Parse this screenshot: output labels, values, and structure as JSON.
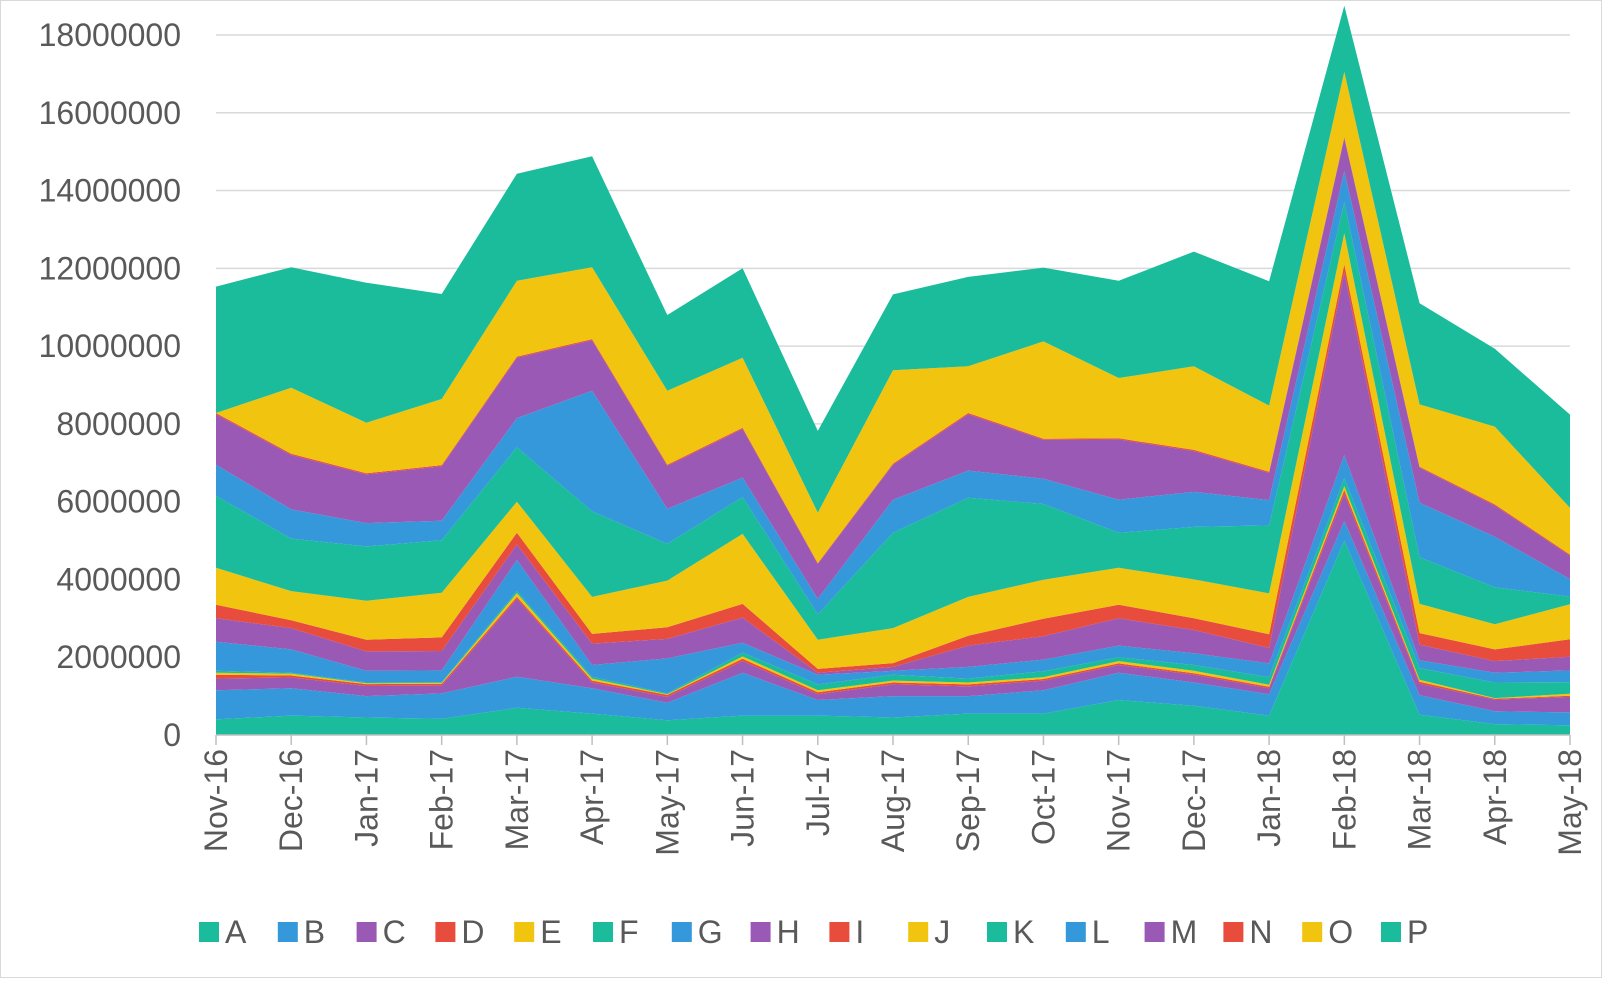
{
  "chart_data": {
    "type": "area",
    "stacked": true,
    "title": "",
    "xlabel": "",
    "ylabel": "",
    "ylim": [
      0,
      18000000
    ],
    "yticks": [
      0,
      2000000,
      4000000,
      6000000,
      8000000,
      10000000,
      12000000,
      14000000,
      16000000,
      18000000
    ],
    "ytick_labels": [
      "0",
      "2000000",
      "4000000",
      "6000000",
      "8000000",
      "10000000",
      "12000000",
      "14000000",
      "16000000",
      "18000000"
    ],
    "grid": "horizontal",
    "legend_position": "bottom",
    "categories": [
      "Nov-16",
      "Dec-16",
      "Jan-17",
      "Feb-17",
      "Mar-17",
      "Apr-17",
      "May-17",
      "Jun-17",
      "Jul-17",
      "Aug-17",
      "Sep-17",
      "Oct-17",
      "Nov-17",
      "Dec-17",
      "Jan-18",
      "Feb-18",
      "Mar-18",
      "Apr-18",
      "May-18"
    ],
    "series": [
      {
        "name": "A",
        "color": "#1abc9c",
        "values": [
          400000,
          500000,
          450000,
          420000,
          700000,
          550000,
          380000,
          500000,
          500000,
          450000,
          550000,
          550000,
          900000,
          750000,
          500000,
          5000000,
          520000,
          280000,
          250000
        ]
      },
      {
        "name": "B",
        "color": "#3498db",
        "values": [
          750000,
          700000,
          550000,
          650000,
          800000,
          650000,
          450000,
          1100000,
          400000,
          550000,
          450000,
          600000,
          700000,
          600000,
          550000,
          500000,
          500000,
          330000,
          330000
        ]
      },
      {
        "name": "C",
        "color": "#9b59b6",
        "values": [
          300000,
          280000,
          260000,
          200000,
          2000000,
          150000,
          150000,
          300000,
          150000,
          300000,
          250000,
          250000,
          200000,
          200000,
          150000,
          700000,
          300000,
          300000,
          400000
        ]
      },
      {
        "name": "D",
        "color": "#e74c3c",
        "values": [
          100000,
          50000,
          50000,
          50000,
          50000,
          50000,
          50000,
          60000,
          50000,
          50000,
          50000,
          40000,
          40000,
          40000,
          40000,
          100000,
          50000,
          20000,
          30000
        ]
      },
      {
        "name": "E",
        "color": "#f1c40f",
        "values": [
          50000,
          50000,
          20000,
          20000,
          100000,
          50000,
          20000,
          60000,
          50000,
          50000,
          50000,
          50000,
          60000,
          60000,
          50000,
          100000,
          50000,
          20000,
          50000
        ]
      },
      {
        "name": "F",
        "color": "#1abc9c",
        "values": [
          50000,
          20000,
          20000,
          20000,
          50000,
          50000,
          20000,
          100000,
          150000,
          150000,
          100000,
          150000,
          100000,
          150000,
          200000,
          200000,
          300000,
          400000,
          300000
        ]
      },
      {
        "name": "G",
        "color": "#3498db",
        "values": [
          750000,
          600000,
          300000,
          300000,
          800000,
          300000,
          900000,
          250000,
          250000,
          100000,
          300000,
          300000,
          300000,
          300000,
          350000,
          600000,
          200000,
          250000,
          300000
        ]
      },
      {
        "name": "H",
        "color": "#9b59b6",
        "values": [
          600000,
          550000,
          500000,
          500000,
          400000,
          550000,
          500000,
          650000,
          50000,
          100000,
          550000,
          600000,
          700000,
          600000,
          400000,
          4700000,
          400000,
          300000,
          350000
        ]
      },
      {
        "name": "I",
        "color": "#e74c3c",
        "values": [
          350000,
          200000,
          300000,
          350000,
          300000,
          250000,
          300000,
          350000,
          100000,
          100000,
          250000,
          450000,
          350000,
          300000,
          350000,
          200000,
          300000,
          300000,
          450000
        ]
      },
      {
        "name": "J",
        "color": "#f1c40f",
        "values": [
          950000,
          750000,
          1000000,
          1150000,
          800000,
          950000,
          1200000,
          1800000,
          750000,
          900000,
          1000000,
          1000000,
          950000,
          1000000,
          1050000,
          800000,
          750000,
          650000,
          900000
        ]
      },
      {
        "name": "K",
        "color": "#1abc9c",
        "values": [
          1850000,
          1350000,
          1400000,
          1350000,
          1400000,
          2200000,
          950000,
          950000,
          650000,
          2450000,
          2550000,
          1950000,
          900000,
          1350000,
          1750000,
          800000,
          1200000,
          950000,
          200000
        ]
      },
      {
        "name": "L",
        "color": "#3498db",
        "values": [
          800000,
          750000,
          600000,
          500000,
          750000,
          3100000,
          900000,
          500000,
          400000,
          850000,
          700000,
          650000,
          850000,
          900000,
          650000,
          800000,
          1400000,
          1300000,
          450000
        ]
      },
      {
        "name": "M",
        "color": "#9b59b6",
        "values": [
          1300000,
          1400000,
          1250000,
          1400000,
          1550000,
          1300000,
          1100000,
          1250000,
          900000,
          900000,
          1450000,
          1000000,
          1550000,
          1050000,
          700000,
          850000,
          900000,
          800000,
          600000
        ]
      },
      {
        "name": "N",
        "color": "#e74c3c",
        "values": [
          30000,
          30000,
          30000,
          30000,
          30000,
          30000,
          30000,
          30000,
          20000,
          30000,
          30000,
          30000,
          30000,
          30000,
          30000,
          30000,
          30000,
          30000,
          30000
        ]
      },
      {
        "name": "O",
        "color": "#f1c40f",
        "values": [
          0,
          1700000,
          1300000,
          1700000,
          1950000,
          1850000,
          1900000,
          1800000,
          1300000,
          2400000,
          1200000,
          2500000,
          1550000,
          2150000,
          1700000,
          1670000,
          1600000,
          2000000,
          1200000
        ]
      },
      {
        "name": "P",
        "color": "#1abc9c",
        "values": [
          3250000,
          3100000,
          3600000,
          2700000,
          2750000,
          2850000,
          1950000,
          2300000,
          2100000,
          1950000,
          2300000,
          1900000,
          2500000,
          2950000,
          3200000,
          1700000,
          2600000,
          2000000,
          2400000
        ]
      }
    ]
  }
}
